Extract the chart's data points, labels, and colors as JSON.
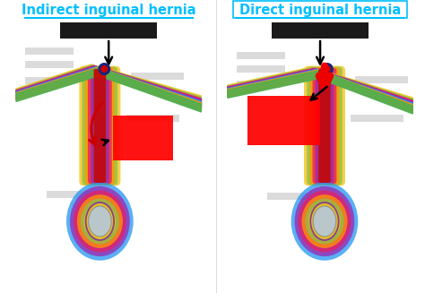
{
  "title_left": "Indirect inguinal hernia",
  "title_right": "Direct inguinal hernia",
  "title_color": "#00bfff",
  "title_fontsize": 10.5,
  "bg_color": "#ffffff",
  "black_box_color": "#1a1a1a",
  "red_box_color": "#ff0000",
  "border_color": "#00bfff",
  "band_colors": [
    "#f5c518",
    "#8bc34a",
    "#e91e63",
    "#9c27b0",
    "#2196f3",
    "#ff9800",
    "#4caf50"
  ],
  "tube_colors": [
    "#f5c518",
    "#8bc34a",
    "#ff9800",
    "#e91e63",
    "#9c27b0",
    "#2196f3"
  ],
  "gray_label": "#c8c8c8"
}
